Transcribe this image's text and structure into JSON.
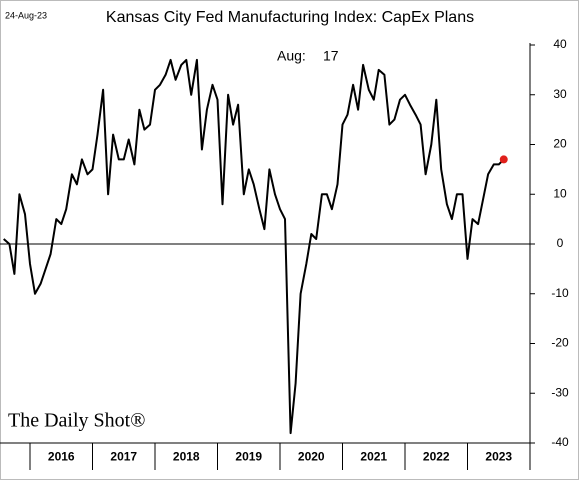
{
  "chart_data": {
    "type": "line",
    "title": "Kansas City Fed Manufacturing Index: CapEx Plans",
    "date_note": "24-Aug-23",
    "annotation": {
      "label": "Aug:",
      "value": 17
    },
    "source": "The Daily Shot®",
    "x": [
      2015.58,
      2015.67,
      2015.75,
      2015.83,
      2015.92,
      2016,
      2016.08,
      2016.17,
      2016.25,
      2016.33,
      2016.42,
      2016.5,
      2016.58,
      2016.67,
      2016.75,
      2016.83,
      2016.92,
      2017,
      2017.08,
      2017.17,
      2017.25,
      2017.33,
      2017.42,
      2017.5,
      2017.58,
      2017.67,
      2017.75,
      2017.83,
      2017.92,
      2018,
      2018.08,
      2018.17,
      2018.25,
      2018.33,
      2018.42,
      2018.5,
      2018.58,
      2018.67,
      2018.75,
      2018.83,
      2018.92,
      2019,
      2019.08,
      2019.17,
      2019.25,
      2019.33,
      2019.42,
      2019.5,
      2019.58,
      2019.67,
      2019.75,
      2019.83,
      2019.92,
      2020,
      2020.08,
      2020.17,
      2020.25,
      2020.33,
      2020.42,
      2020.5,
      2020.58,
      2020.67,
      2020.75,
      2020.83,
      2020.92,
      2021,
      2021.08,
      2021.17,
      2021.25,
      2021.33,
      2021.42,
      2021.5,
      2021.58,
      2021.67,
      2021.75,
      2021.83,
      2021.92,
      2022,
      2022.08,
      2022.17,
      2022.25,
      2022.33,
      2022.42,
      2022.5,
      2022.58,
      2022.67,
      2022.75,
      2022.83,
      2022.92,
      2023,
      2023.08,
      2023.17,
      2023.25,
      2023.33,
      2023.42,
      2023.5,
      2023.58
    ],
    "series": [
      {
        "name": "CapEx Plans",
        "color": "#000000",
        "values": [
          1,
          0,
          -6,
          10,
          6,
          -4,
          -10,
          -8,
          -5,
          -2,
          5,
          4,
          7,
          14,
          12,
          17,
          14,
          15,
          22,
          31,
          10,
          22,
          17,
          17,
          21,
          16,
          27,
          23,
          24,
          31,
          32,
          34,
          37,
          33,
          36,
          37,
          30,
          37,
          19,
          27,
          32,
          29,
          8,
          30,
          24,
          28,
          10,
          15,
          12,
          7,
          3,
          15,
          10,
          7,
          5,
          -38,
          -28,
          -10,
          -4,
          2,
          1,
          10,
          10,
          7,
          12,
          24,
          26,
          32,
          27,
          36,
          31,
          29,
          35,
          34,
          24,
          25,
          29,
          30,
          28,
          26,
          24,
          14,
          20,
          29,
          15,
          8,
          5,
          10,
          10,
          -3,
          5,
          4,
          9,
          14,
          16,
          16,
          17
        ]
      }
    ],
    "last_point_color": "#e0201b",
    "xlim": [
      2015.52,
      2024
    ],
    "xticks": [
      {
        "value": 2016,
        "label": "2016"
      },
      {
        "value": 2017,
        "label": "2017"
      },
      {
        "value": 2018,
        "label": "2018"
      },
      {
        "value": 2019,
        "label": "2019"
      },
      {
        "value": 2020,
        "label": "2020"
      },
      {
        "value": 2021,
        "label": "2021"
      },
      {
        "value": 2022,
        "label": "2022"
      },
      {
        "value": 2023,
        "label": "2023"
      }
    ],
    "ylim": [
      -40,
      40
    ],
    "yticks": [
      -40,
      -30,
      -20,
      -10,
      0,
      10,
      20,
      30,
      40
    ],
    "zero_line": true
  }
}
